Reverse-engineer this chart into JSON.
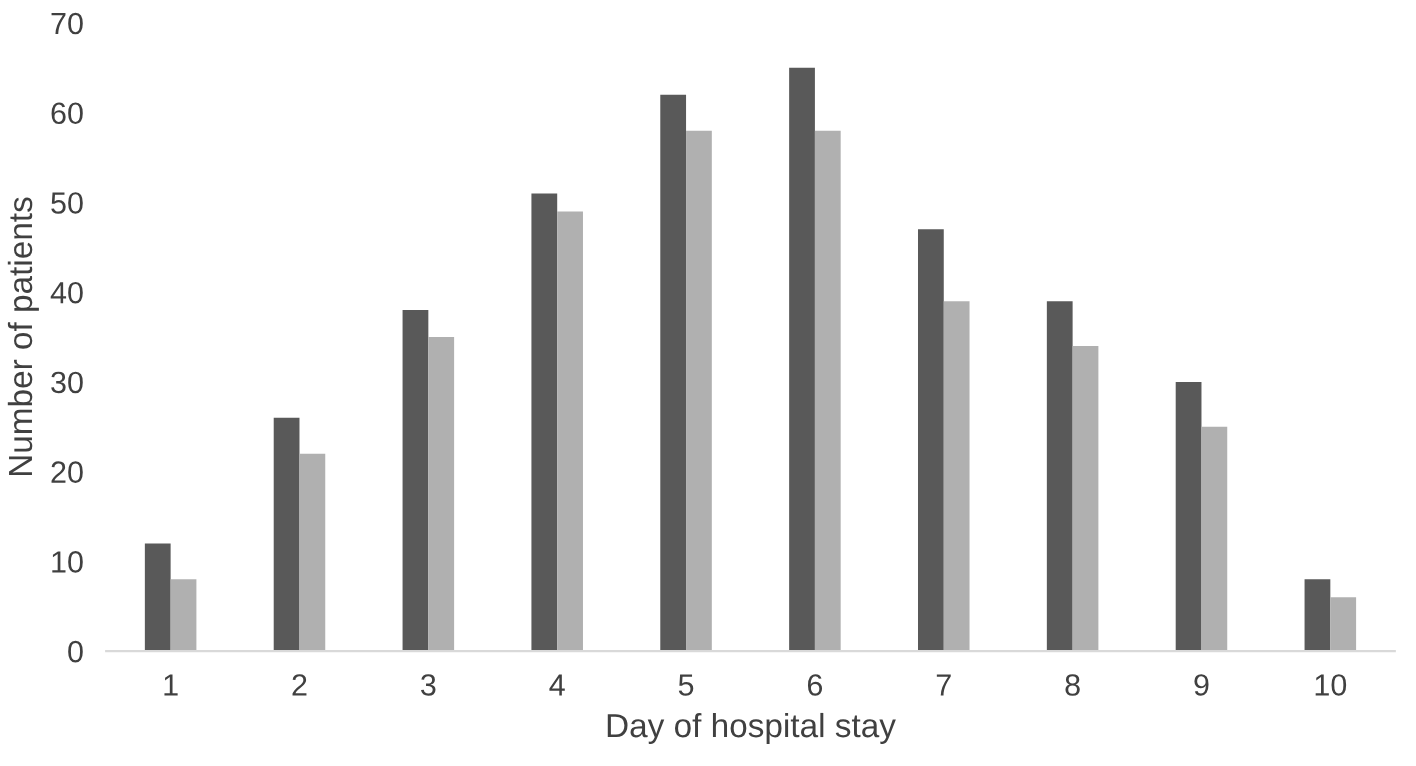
{
  "chart_data": {
    "type": "bar",
    "xlabel": "Day of hospital stay",
    "ylabel": "Number of patients",
    "categories": [
      "1",
      "2",
      "3",
      "4",
      "5",
      "6",
      "7",
      "8",
      "9",
      "10"
    ],
    "series": [
      {
        "color": "#595959",
        "values": [
          12,
          26,
          38,
          51,
          62,
          65,
          47,
          39,
          30,
          8
        ]
      },
      {
        "color": "#b0b0b0",
        "values": [
          8,
          22,
          35,
          49,
          58,
          58,
          39,
          34,
          25,
          6
        ]
      }
    ],
    "ylim": [
      0,
      70
    ],
    "yticks": [
      0,
      10,
      20,
      30,
      40,
      50,
      60,
      70
    ],
    "grid": false,
    "legend": false
  }
}
